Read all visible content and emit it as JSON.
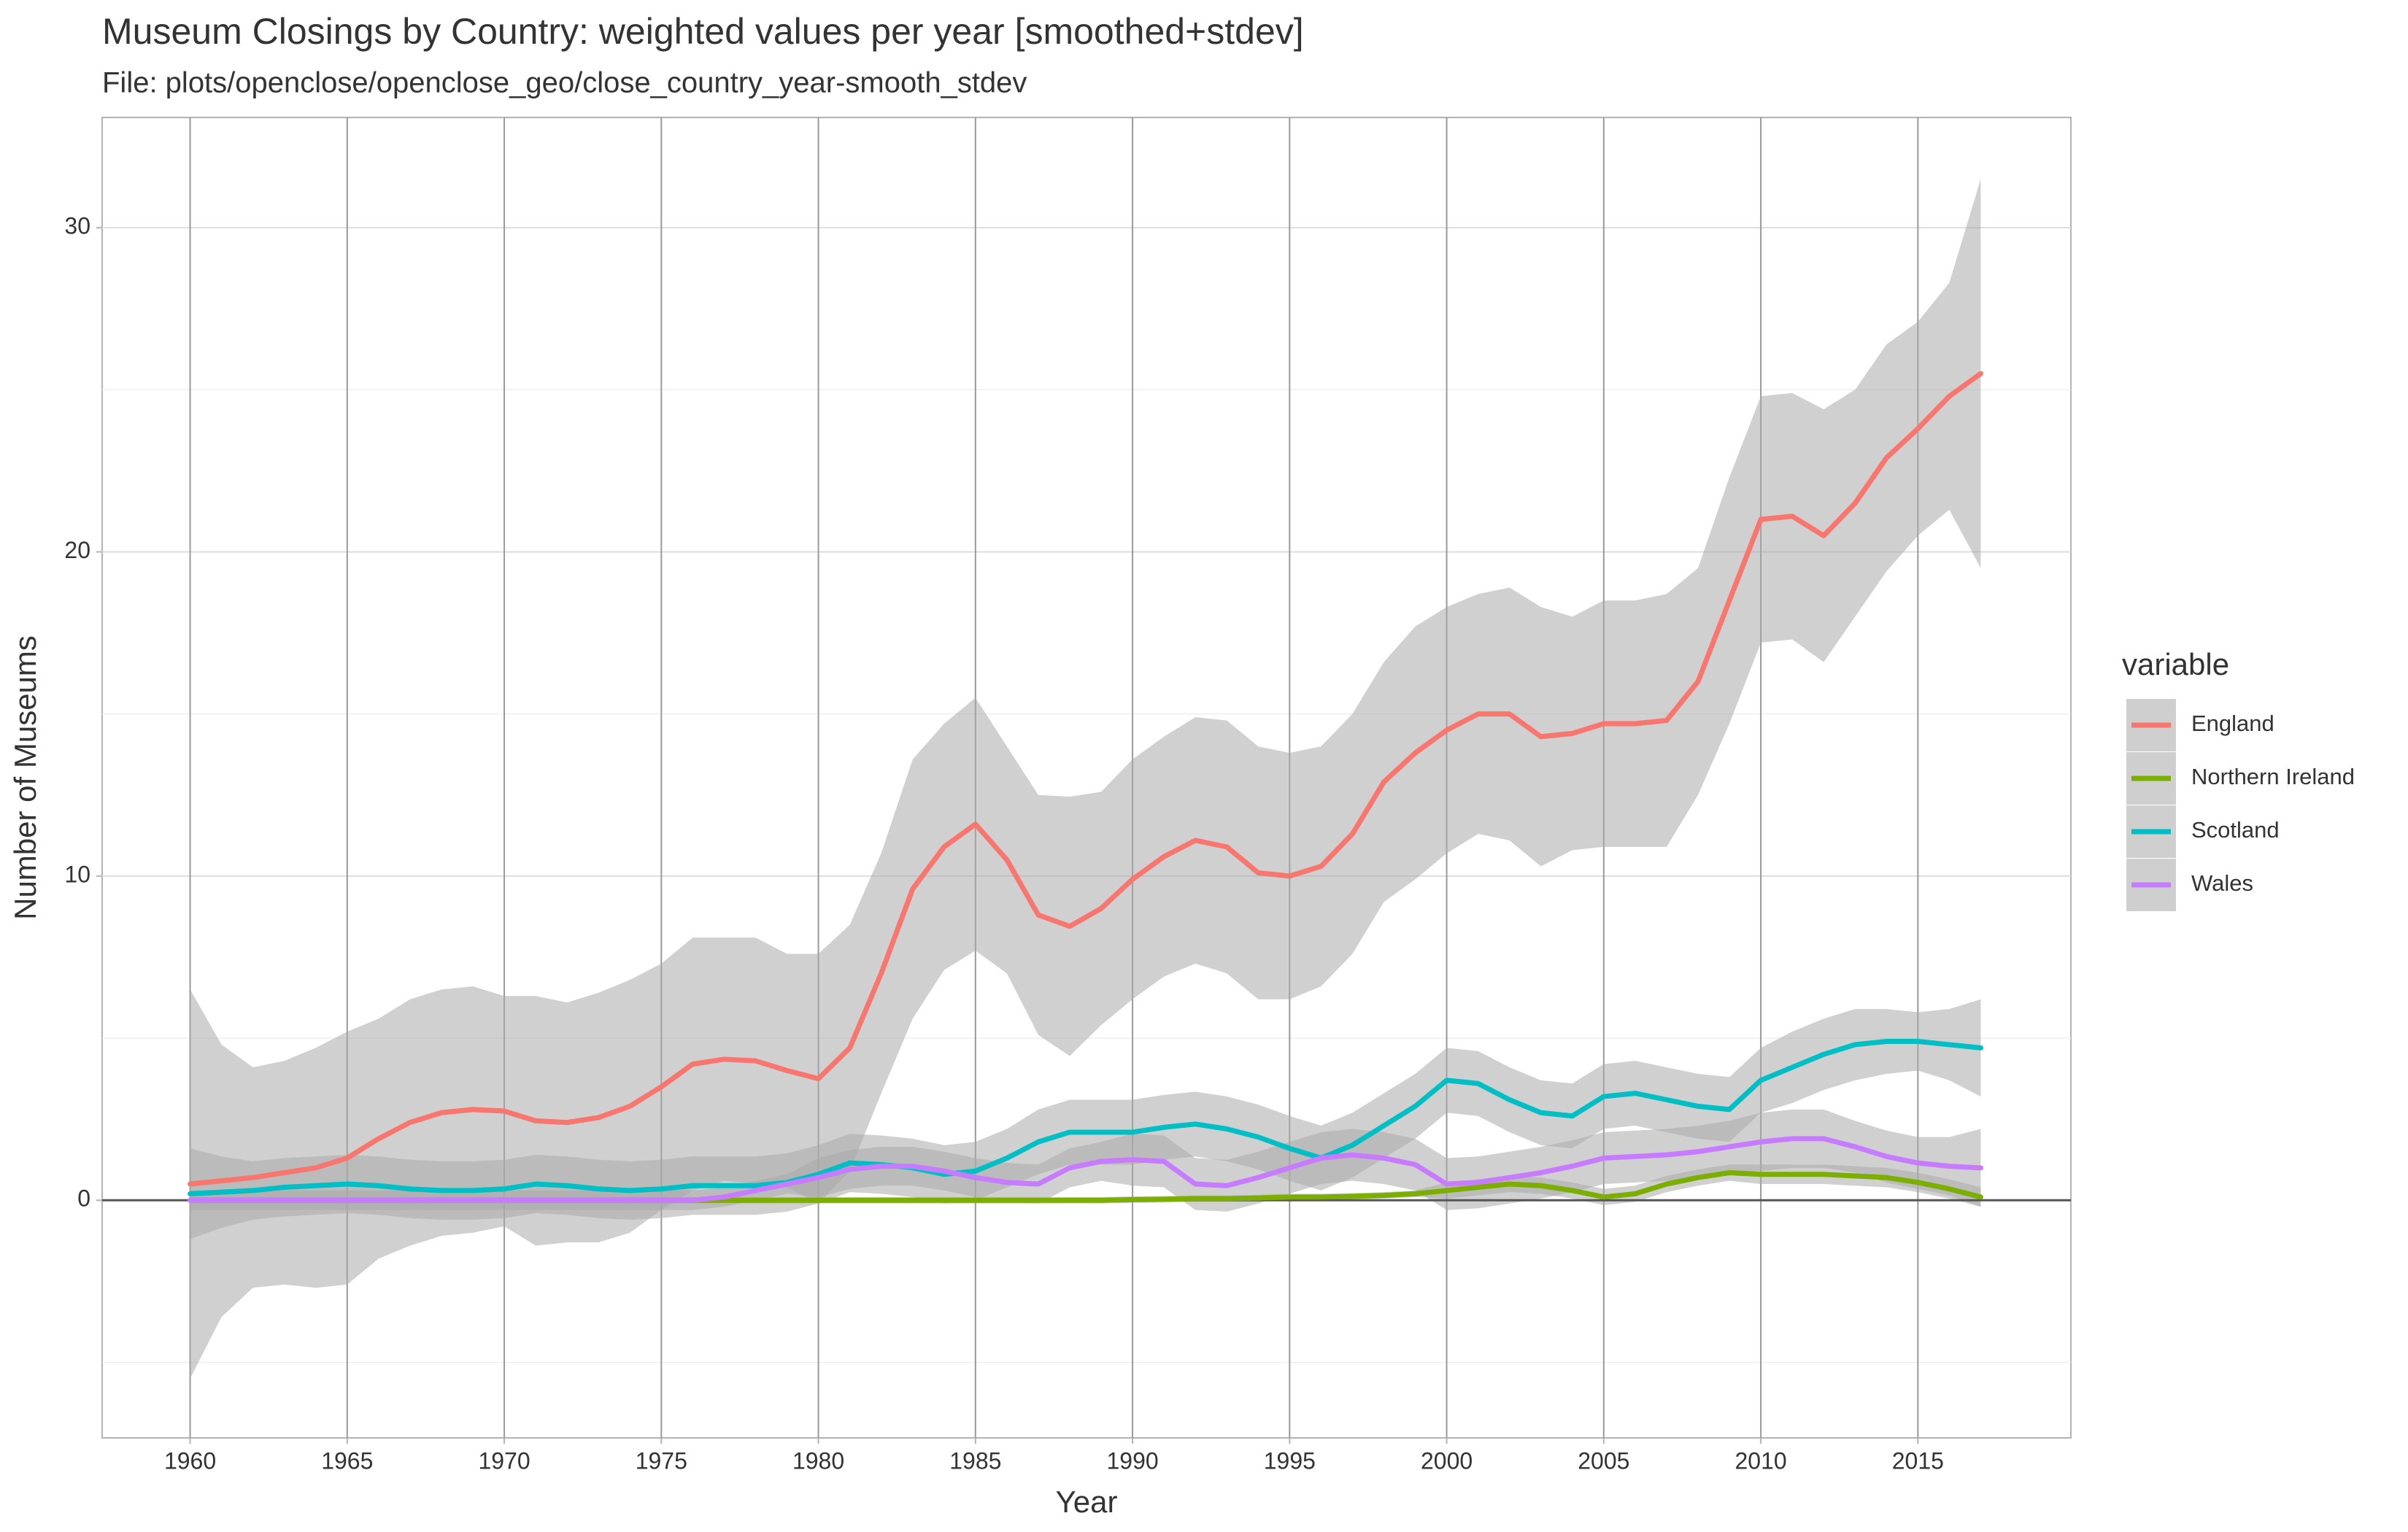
{
  "chart_data": {
    "type": "line",
    "title": "Museum Closings by Country: weighted values per year [smoothed+stdev]",
    "subtitle": "File: plots/openclose/openclose_geo/close_country_year-smooth_stdev",
    "x_label": "Year",
    "y_label": "Number of Museums",
    "legend_title": "variable",
    "legend_position": "right",
    "grid": true,
    "hline": 0,
    "xlim": [
      1957.2,
      2019.87
    ],
    "ylim": [
      -7.33,
      33.4
    ],
    "xticks": [
      1960,
      1965,
      1970,
      1975,
      1980,
      1985,
      1990,
      1995,
      2000,
      2005,
      2010,
      2015
    ],
    "yticks": [
      0,
      10,
      20,
      30
    ],
    "yminorticks": [
      -5,
      5,
      15,
      25
    ],
    "ribbon_color": "#aaaaaa",
    "x": [
      1960,
      1961,
      1962,
      1963,
      1964,
      1965,
      1966,
      1967,
      1968,
      1969,
      1970,
      1971,
      1972,
      1973,
      1974,
      1975,
      1976,
      1977,
      1978,
      1979,
      1980,
      1981,
      1982,
      1983,
      1984,
      1985,
      1986,
      1987,
      1988,
      1989,
      1990,
      1991,
      1992,
      1993,
      1994,
      1995,
      1996,
      1997,
      1998,
      1999,
      2000,
      2001,
      2002,
      2003,
      2004,
      2005,
      2006,
      2007,
      2008,
      2009,
      2010,
      2011,
      2012,
      2013,
      2014,
      2015,
      2016,
      2017
    ],
    "series": [
      {
        "name": "England",
        "color": "#f8766d",
        "values": [
          0.5,
          0.6,
          0.7,
          0.85,
          1.0,
          1.3,
          1.9,
          2.4,
          2.7,
          2.8,
          2.75,
          2.45,
          2.4,
          2.55,
          2.9,
          3.5,
          4.2,
          4.35,
          4.3,
          4.0,
          3.75,
          4.7,
          7.0,
          9.6,
          10.9,
          11.6,
          10.5,
          8.8,
          8.45,
          9.0,
          9.9,
          10.6,
          11.1,
          10.9,
          10.1,
          10.0,
          10.3,
          11.3,
          12.9,
          13.8,
          14.5,
          15.0,
          15.0,
          14.3,
          14.4,
          14.7,
          14.7,
          14.8,
          16.0,
          18.5,
          21.0,
          21.1,
          20.5,
          21.5,
          22.9,
          23.8,
          24.8,
          25.5
        ],
        "sd": [
          6.0,
          4.2,
          3.4,
          3.45,
          3.7,
          3.9,
          3.7,
          3.8,
          3.8,
          3.8,
          3.55,
          3.85,
          3.7,
          3.85,
          3.9,
          3.8,
          3.9,
          3.75,
          3.8,
          3.6,
          3.85,
          3.8,
          3.7,
          4.0,
          3.8,
          3.9,
          3.5,
          3.7,
          4.0,
          3.6,
          3.7,
          3.7,
          3.8,
          3.9,
          3.9,
          3.8,
          3.7,
          3.7,
          3.7,
          3.9,
          3.8,
          3.7,
          3.9,
          4.0,
          3.6,
          3.8,
          3.8,
          3.9,
          3.5,
          3.8,
          3.8,
          3.8,
          3.9,
          3.5,
          3.5,
          3.3,
          3.5,
          6.0
        ]
      },
      {
        "name": "Northern Ireland",
        "color": "#7cae00",
        "values": [
          0,
          0,
          0,
          0,
          0,
          0,
          0,
          0,
          0,
          0,
          0,
          0,
          0,
          0,
          0,
          0,
          0,
          0,
          0,
          0,
          0,
          0,
          0,
          0,
          0,
          0,
          0,
          0,
          0,
          0,
          0.02,
          0.03,
          0.05,
          0.05,
          0.07,
          0.1,
          0.1,
          0.12,
          0.15,
          0.2,
          0.3,
          0.4,
          0.5,
          0.45,
          0.3,
          0.1,
          0.2,
          0.5,
          0.7,
          0.85,
          0.8,
          0.8,
          0.8,
          0.75,
          0.7,
          0.55,
          0.35,
          0.1
        ],
        "sd": [
          0.1,
          0.1,
          0.1,
          0.1,
          0.1,
          0.1,
          0.1,
          0.1,
          0.1,
          0.1,
          0.1,
          0.1,
          0.1,
          0.1,
          0.1,
          0.1,
          0.1,
          0.1,
          0.1,
          0.1,
          0.1,
          0.1,
          0.1,
          0.1,
          0.1,
          0.1,
          0.1,
          0.1,
          0.1,
          0.1,
          0.1,
          0.1,
          0.1,
          0.1,
          0.1,
          0.1,
          0.1,
          0.1,
          0.1,
          0.1,
          0.25,
          0.25,
          0.25,
          0.25,
          0.25,
          0.25,
          0.25,
          0.25,
          0.25,
          0.25,
          0.3,
          0.3,
          0.3,
          0.3,
          0.3,
          0.3,
          0.3,
          0.3
        ]
      },
      {
        "name": "Scotland",
        "color": "#00bfc4",
        "values": [
          0.2,
          0.25,
          0.3,
          0.4,
          0.45,
          0.5,
          0.45,
          0.35,
          0.3,
          0.3,
          0.35,
          0.5,
          0.45,
          0.35,
          0.3,
          0.35,
          0.45,
          0.45,
          0.45,
          0.55,
          0.8,
          1.15,
          1.1,
          1.0,
          0.8,
          0.9,
          1.3,
          1.8,
          2.1,
          2.1,
          2.1,
          2.25,
          2.35,
          2.2,
          1.95,
          1.6,
          1.3,
          1.7,
          2.3,
          2.9,
          3.7,
          3.6,
          3.1,
          2.7,
          2.6,
          3.2,
          3.3,
          3.1,
          2.9,
          2.8,
          3.7,
          4.1,
          4.5,
          4.8,
          4.9,
          4.9,
          4.8,
          4.7
        ],
        "sd": [
          1.4,
          1.1,
          0.9,
          0.9,
          0.9,
          0.9,
          0.9,
          0.9,
          0.9,
          0.9,
          0.9,
          0.9,
          0.9,
          0.9,
          0.9,
          0.9,
          0.9,
          0.9,
          0.9,
          0.9,
          0.9,
          0.9,
          0.9,
          0.9,
          0.9,
          0.9,
          0.9,
          1.0,
          1.0,
          1.0,
          1.0,
          1.0,
          1.0,
          1.0,
          1.0,
          1.0,
          1.0,
          1.0,
          1.0,
          1.0,
          1.0,
          1.0,
          1.0,
          1.0,
          1.0,
          1.0,
          1.0,
          1.0,
          1.0,
          1.0,
          1.0,
          1.1,
          1.1,
          1.1,
          1.0,
          0.9,
          1.1,
          1.5
        ]
      },
      {
        "name": "Wales",
        "color": "#c77cff",
        "values": [
          0,
          0,
          0,
          0,
          0,
          0,
          0,
          0,
          0,
          0,
          0,
          0,
          0,
          0,
          0,
          0,
          0,
          0.1,
          0.3,
          0.5,
          0.7,
          0.95,
          1.05,
          1.05,
          0.9,
          0.7,
          0.55,
          0.5,
          1.0,
          1.2,
          1.25,
          1.2,
          0.5,
          0.45,
          0.7,
          1.0,
          1.3,
          1.4,
          1.3,
          1.1,
          0.5,
          0.55,
          0.7,
          0.85,
          1.05,
          1.3,
          1.35,
          1.4,
          1.5,
          1.65,
          1.8,
          1.9,
          1.9,
          1.65,
          1.35,
          1.15,
          1.05,
          1.0
        ],
        "sd": [
          0.3,
          0.3,
          0.3,
          0.3,
          0.3,
          0.3,
          0.3,
          0.3,
          0.3,
          0.3,
          0.3,
          0.3,
          0.3,
          0.3,
          0.3,
          0.3,
          0.3,
          0.3,
          0.3,
          0.3,
          0.6,
          0.6,
          0.6,
          0.6,
          0.6,
          0.6,
          0.6,
          0.6,
          0.6,
          0.6,
          0.8,
          0.8,
          0.8,
          0.8,
          0.8,
          0.8,
          0.8,
          0.8,
          0.8,
          0.8,
          0.8,
          0.8,
          0.8,
          0.8,
          0.8,
          0.8,
          0.8,
          0.8,
          0.8,
          0.8,
          0.9,
          0.9,
          0.9,
          0.8,
          0.8,
          0.8,
          0.9,
          1.2
        ]
      }
    ]
  }
}
